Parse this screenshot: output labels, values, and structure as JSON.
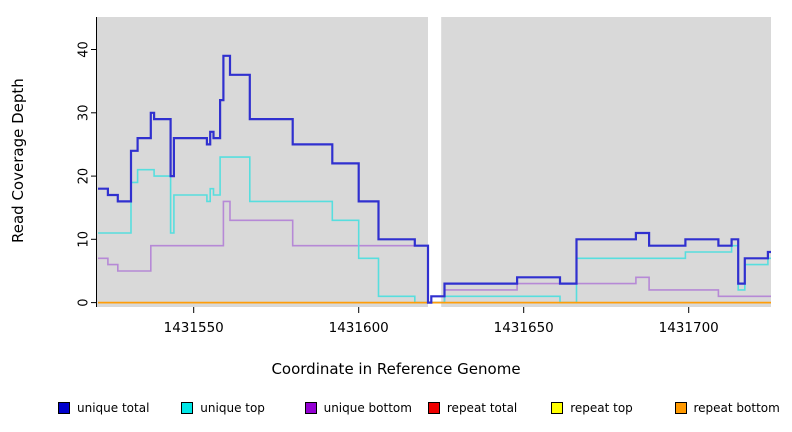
{
  "figure": {
    "x_axis_title": "Coordinate in Reference Genome",
    "y_axis_title": "Read Coverage Depth"
  },
  "chart_data": {
    "type": "line",
    "subtype": "step-after",
    "title": "",
    "xlabel": "Coordinate in Reference Genome",
    "ylabel": "Read Coverage Depth",
    "xlim": [
      1431521,
      1431725
    ],
    "ylim": [
      0,
      45
    ],
    "x_ticks": [
      1431550,
      1431600,
      1431650,
      1431700
    ],
    "y_ticks": [
      0,
      10,
      20,
      30,
      40
    ],
    "grid": false,
    "legend_position": "bottom",
    "panel_bg": "#d9d9d9",
    "gap_region": {
      "x_start": 1431621,
      "x_end": 1431625,
      "color": "#ffffff"
    },
    "draw_order": [
      2,
      1,
      3,
      4,
      5,
      0
    ],
    "series": [
      {
        "name": "unique total",
        "color": "#3030cf",
        "legend_color": "#0000cc",
        "line_width": 2.2,
        "x_end": 1431725,
        "steps": [
          [
            1431521,
            18
          ],
          [
            1431524,
            17
          ],
          [
            1431527,
            16
          ],
          [
            1431531,
            24
          ],
          [
            1431533,
            26
          ],
          [
            1431537,
            30
          ],
          [
            1431538,
            29
          ],
          [
            1431543,
            20
          ],
          [
            1431544,
            26
          ],
          [
            1431554,
            25
          ],
          [
            1431555,
            27
          ],
          [
            1431556,
            26
          ],
          [
            1431558,
            32
          ],
          [
            1431559,
            39
          ],
          [
            1431561,
            36
          ],
          [
            1431567,
            29
          ],
          [
            1431580,
            25
          ],
          [
            1431592,
            22
          ],
          [
            1431600,
            16
          ],
          [
            1431606,
            10
          ],
          [
            1431617,
            9
          ],
          [
            1431621,
            0
          ],
          [
            1431622,
            1
          ],
          [
            1431626,
            3
          ],
          [
            1431648,
            4
          ],
          [
            1431661,
            3
          ],
          [
            1431666,
            10
          ],
          [
            1431684,
            11
          ],
          [
            1431688,
            9
          ],
          [
            1431699,
            10
          ],
          [
            1431709,
            9
          ],
          [
            1431713,
            10
          ],
          [
            1431715,
            3
          ],
          [
            1431717,
            7
          ],
          [
            1431724,
            8
          ]
        ]
      },
      {
        "name": "unique top",
        "color": "#57dede",
        "legend_color": "#00e6e6",
        "line_width": 1.6,
        "x_end": 1431725,
        "steps": [
          [
            1431521,
            11
          ],
          [
            1431531,
            19
          ],
          [
            1431533,
            21
          ],
          [
            1431538,
            20
          ],
          [
            1431543,
            11
          ],
          [
            1431544,
            17
          ],
          [
            1431554,
            16
          ],
          [
            1431555,
            18
          ],
          [
            1431556,
            17
          ],
          [
            1431558,
            23
          ],
          [
            1431567,
            16
          ],
          [
            1431592,
            13
          ],
          [
            1431600,
            7
          ],
          [
            1431606,
            1
          ],
          [
            1431617,
            0
          ],
          [
            1431626,
            1
          ],
          [
            1431661,
            0
          ],
          [
            1431666,
            7
          ],
          [
            1431699,
            8
          ],
          [
            1431713,
            9
          ],
          [
            1431715,
            2
          ],
          [
            1431717,
            6
          ],
          [
            1431724,
            7
          ]
        ]
      },
      {
        "name": "unique bottom",
        "color": "#b689d6",
        "legend_color": "#9400d3",
        "line_width": 1.6,
        "x_end": 1431725,
        "steps": [
          [
            1431521,
            7
          ],
          [
            1431524,
            6
          ],
          [
            1431527,
            5
          ],
          [
            1431537,
            9
          ],
          [
            1431559,
            16
          ],
          [
            1431561,
            13
          ],
          [
            1431580,
            9
          ],
          [
            1431621,
            0
          ],
          [
            1431626,
            2
          ],
          [
            1431648,
            3
          ],
          [
            1431684,
            4
          ],
          [
            1431688,
            2
          ],
          [
            1431709,
            1
          ]
        ]
      },
      {
        "name": "repeat total",
        "color": "#e00000",
        "legend_color": "#ee0000",
        "line_width": 1.2,
        "x_end": 1431725,
        "steps": [
          [
            1431521,
            0
          ]
        ]
      },
      {
        "name": "repeat top",
        "color": "#f5f500",
        "legend_color": "#ffff00",
        "line_width": 1.2,
        "x_end": 1431725,
        "steps": [
          [
            1431521,
            0
          ]
        ]
      },
      {
        "name": "repeat bottom",
        "color": "#ff9d0a",
        "legend_color": "#ff9900",
        "line_width": 1.6,
        "x_end": 1431725,
        "steps": [
          [
            1431521,
            0
          ]
        ]
      }
    ]
  }
}
